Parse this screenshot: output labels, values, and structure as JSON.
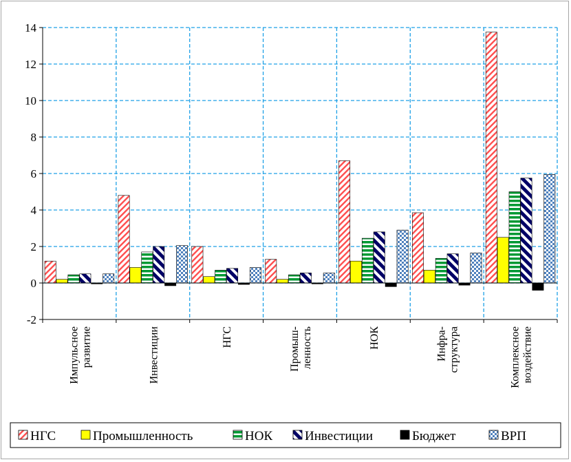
{
  "chart_data": {
    "type": "bar",
    "title": "",
    "xlabel": "",
    "ylabel": "",
    "ylim": [
      -2,
      14
    ],
    "yticks": [
      -2,
      0,
      2,
      4,
      6,
      8,
      10,
      12,
      14
    ],
    "grid": true,
    "legend_position": "bottom",
    "categories": [
      [
        "Импульсное",
        "развитие"
      ],
      [
        "Инвестиции"
      ],
      [
        "НГС"
      ],
      [
        "Промыш-",
        "ленность"
      ],
      [
        "НОК"
      ],
      [
        "Инфра-",
        "структура"
      ],
      [
        "Комплексное",
        "воздействие"
      ]
    ],
    "series": [
      {
        "name": "НГС",
        "color": "#ff4d4d",
        "pattern": "diagonal-hatch-red",
        "values": [
          1.2,
          4.8,
          2.0,
          1.3,
          6.7,
          3.85,
          13.75
        ]
      },
      {
        "name": "Промышленность",
        "color": "#ffff00",
        "pattern": "solid-yellow",
        "values": [
          0.2,
          0.85,
          0.35,
          0.2,
          1.2,
          0.7,
          2.5
        ]
      },
      {
        "name": "НОК",
        "color": "#009933",
        "pattern": "horizontal-stripes-green",
        "values": [
          0.45,
          1.7,
          0.7,
          0.45,
          2.45,
          1.35,
          5.0
        ]
      },
      {
        "name": "Инвестиции",
        "color": "#000066",
        "pattern": "wide-diagonal-navy",
        "values": [
          0.5,
          2.0,
          0.8,
          0.55,
          2.8,
          1.6,
          5.75
        ]
      },
      {
        "name": "Бюджет",
        "color": "#000000",
        "pattern": "solid-black",
        "values": [
          -0.05,
          -0.15,
          -0.08,
          -0.05,
          -0.2,
          -0.12,
          -0.4
        ]
      },
      {
        "name": "ВРП",
        "color": "#4f81bd",
        "pattern": "checker-blue",
        "values": [
          0.5,
          2.05,
          0.85,
          0.55,
          2.9,
          1.65,
          5.95
        ]
      }
    ]
  }
}
